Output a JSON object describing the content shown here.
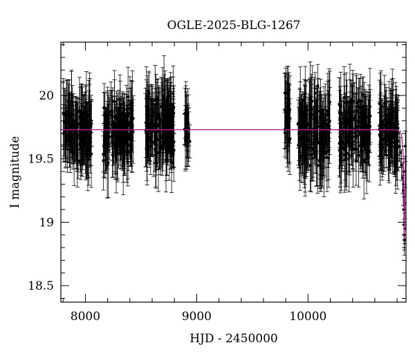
{
  "chart_data": {
    "type": "scatter",
    "title": "OGLE-2025-BLG-1267",
    "xlabel": "HJD - 2450000",
    "ylabel": "I magnitude",
    "xlim": [
      7780,
      10880
    ],
    "ylim": [
      20.42,
      18.37
    ],
    "y_inverted": true,
    "xticks": [
      8000,
      9000,
      10000
    ],
    "yticks": [
      18.5,
      19,
      19.5,
      20
    ],
    "grid": false,
    "colors": {
      "points": "#000000",
      "model": "#b0228f"
    },
    "observing_seasons": [
      {
        "start": 7800,
        "end": 8060,
        "count": 150,
        "mean": 19.73,
        "spread": 0.2,
        "error": 0.2
      },
      {
        "start": 8160,
        "end": 8430,
        "count": 160,
        "mean": 19.72,
        "spread": 0.2,
        "error": 0.2
      },
      {
        "start": 8540,
        "end": 8800,
        "count": 150,
        "mean": 19.75,
        "spread": 0.22,
        "error": 0.22
      },
      {
        "start": 8890,
        "end": 8940,
        "count": 22,
        "mean": 19.73,
        "spread": 0.15,
        "error": 0.2
      },
      {
        "start": 9790,
        "end": 9840,
        "count": 30,
        "mean": 19.83,
        "spread": 0.25,
        "error": 0.22
      },
      {
        "start": 9910,
        "end": 10200,
        "count": 150,
        "mean": 19.72,
        "spread": 0.22,
        "error": 0.22
      },
      {
        "start": 10280,
        "end": 10560,
        "count": 150,
        "mean": 19.73,
        "spread": 0.22,
        "error": 0.22
      },
      {
        "start": 10640,
        "end": 10810,
        "count": 120,
        "mean": 19.74,
        "spread": 0.2,
        "error": 0.2
      }
    ],
    "event_points": [
      {
        "x": 10820,
        "y": 19.6
      },
      {
        "x": 10830,
        "y": 19.55
      },
      {
        "x": 10840,
        "y": 19.45
      },
      {
        "x": 10850,
        "y": 19.35
      },
      {
        "x": 10855,
        "y": 19.25
      },
      {
        "x": 10860,
        "y": 19.1
      },
      {
        "x": 10862,
        "y": 18.98
      },
      {
        "x": 10864,
        "y": 18.9
      },
      {
        "x": 10866,
        "y": 18.86
      },
      {
        "x": 10868,
        "y": 18.95
      },
      {
        "x": 10870,
        "y": 19.15
      },
      {
        "x": 10872,
        "y": 19.4
      },
      {
        "x": 10875,
        "y": 19.6
      }
    ],
    "model": {
      "baseline": 19.73,
      "t0": 10866,
      "peak": 18.87,
      "tE": 25,
      "u0": 0.12
    }
  }
}
